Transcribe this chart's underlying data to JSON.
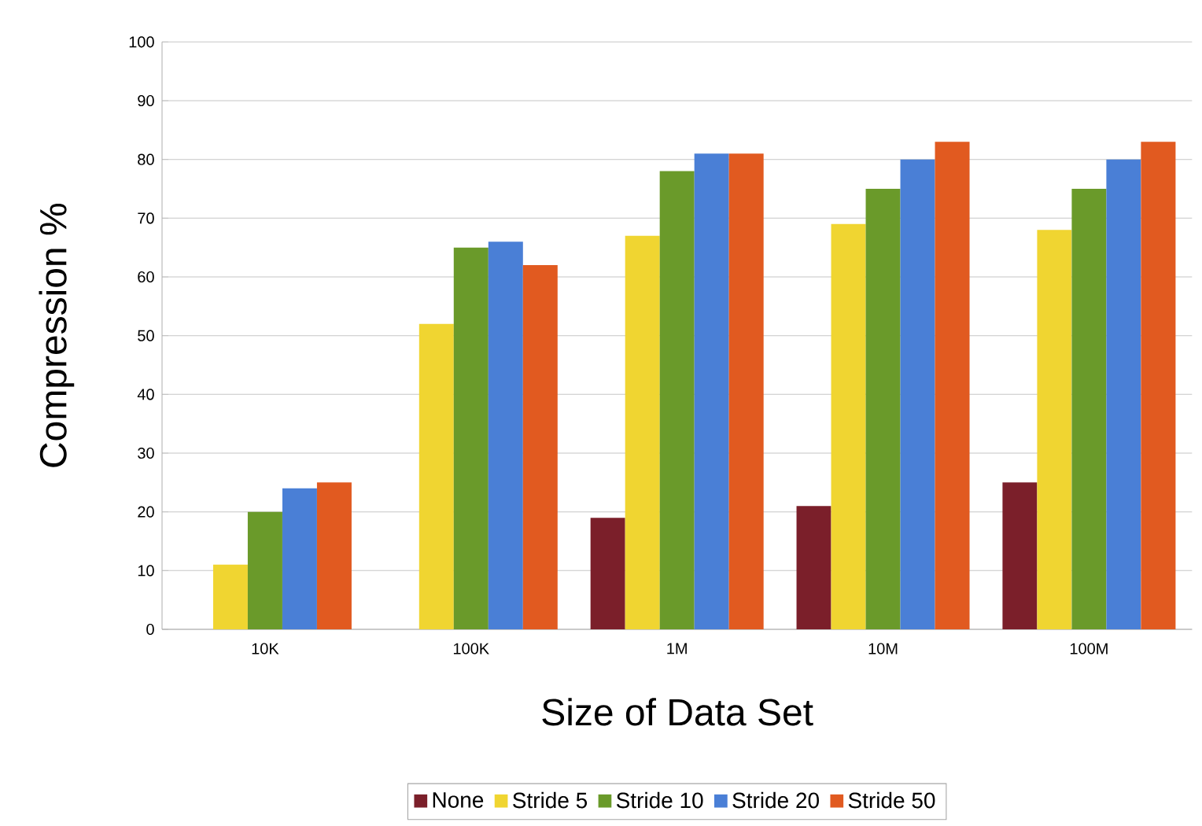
{
  "chart_data": {
    "type": "bar",
    "xlabel": "Size of Data Set",
    "ylabel": "Compression %",
    "categories": [
      "10K",
      "100K",
      "1M",
      "10M",
      "100M"
    ],
    "series": [
      {
        "name": "None",
        "color": "#7b1f2a",
        "values": [
          null,
          null,
          19,
          21,
          25
        ]
      },
      {
        "name": "Stride 5",
        "color": "#f0d531",
        "values": [
          11,
          52,
          67,
          69,
          68
        ]
      },
      {
        "name": "Stride 10",
        "color": "#6a9a2a",
        "values": [
          20,
          65,
          78,
          75,
          75
        ]
      },
      {
        "name": "Stride 20",
        "color": "#4a7fd6",
        "values": [
          24,
          66,
          81,
          80,
          80
        ]
      },
      {
        "name": "Stride 50",
        "color": "#e15a20",
        "values": [
          25,
          62,
          81,
          83,
          83
        ]
      }
    ],
    "ylim": [
      0,
      100
    ],
    "yticks": [
      0,
      10,
      20,
      30,
      40,
      50,
      60,
      70,
      80,
      90,
      100
    ],
    "grid": "y",
    "legend": "bottom"
  }
}
